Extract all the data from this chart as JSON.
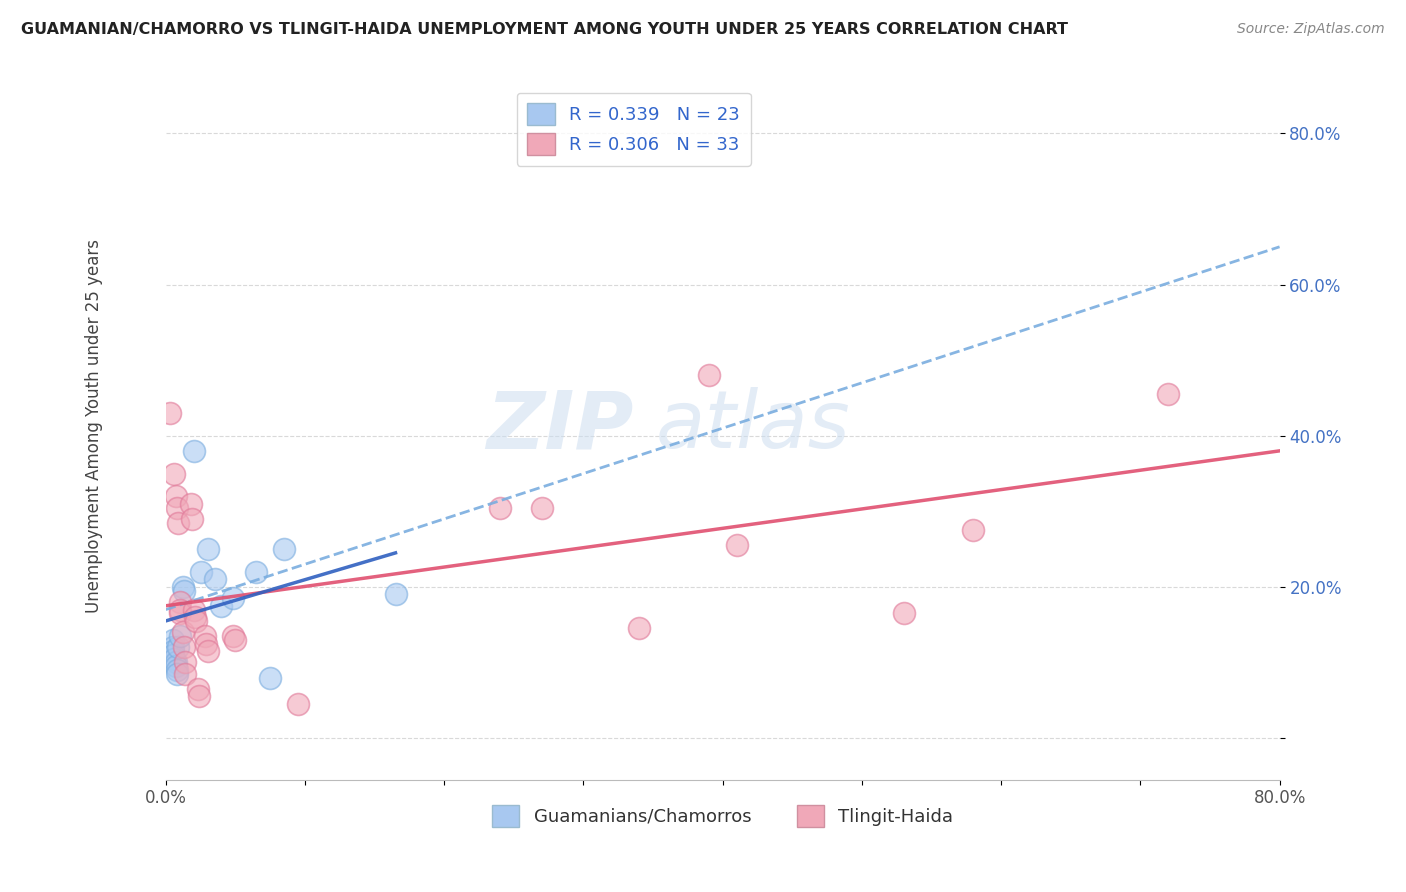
{
  "title": "GUAMANIAN/CHAMORRO VS TLINGIT-HAIDA UNEMPLOYMENT AMONG YOUTH UNDER 25 YEARS CORRELATION CHART",
  "source": "Source: ZipAtlas.com",
  "ylabel": "Unemployment Among Youth under 25 years",
  "blue_color": "#a8c8f0",
  "pink_color": "#f0a8b8",
  "blue_scatter": [
    [
      0.005,
      0.13
    ],
    [
      0.005,
      0.12
    ],
    [
      0.005,
      0.115
    ],
    [
      0.005,
      0.11
    ],
    [
      0.006,
      0.105
    ],
    [
      0.007,
      0.1
    ],
    [
      0.007,
      0.095
    ],
    [
      0.008,
      0.09
    ],
    [
      0.008,
      0.085
    ],
    [
      0.009,
      0.12
    ],
    [
      0.01,
      0.135
    ],
    [
      0.012,
      0.2
    ],
    [
      0.013,
      0.195
    ],
    [
      0.02,
      0.38
    ],
    [
      0.025,
      0.22
    ],
    [
      0.03,
      0.25
    ],
    [
      0.035,
      0.21
    ],
    [
      0.04,
      0.175
    ],
    [
      0.048,
      0.185
    ],
    [
      0.065,
      0.22
    ],
    [
      0.075,
      0.08
    ],
    [
      0.085,
      0.25
    ],
    [
      0.165,
      0.19
    ]
  ],
  "pink_scatter": [
    [
      0.003,
      0.43
    ],
    [
      0.006,
      0.35
    ],
    [
      0.007,
      0.32
    ],
    [
      0.008,
      0.305
    ],
    [
      0.009,
      0.285
    ],
    [
      0.01,
      0.18
    ],
    [
      0.01,
      0.17
    ],
    [
      0.01,
      0.165
    ],
    [
      0.012,
      0.14
    ],
    [
      0.013,
      0.12
    ],
    [
      0.014,
      0.1
    ],
    [
      0.014,
      0.085
    ],
    [
      0.018,
      0.31
    ],
    [
      0.019,
      0.29
    ],
    [
      0.02,
      0.17
    ],
    [
      0.021,
      0.16
    ],
    [
      0.022,
      0.155
    ],
    [
      0.023,
      0.065
    ],
    [
      0.024,
      0.055
    ],
    [
      0.028,
      0.135
    ],
    [
      0.029,
      0.125
    ],
    [
      0.03,
      0.115
    ],
    [
      0.048,
      0.135
    ],
    [
      0.05,
      0.13
    ],
    [
      0.095,
      0.045
    ],
    [
      0.24,
      0.305
    ],
    [
      0.27,
      0.305
    ],
    [
      0.34,
      0.145
    ],
    [
      0.39,
      0.48
    ],
    [
      0.41,
      0.255
    ],
    [
      0.53,
      0.165
    ],
    [
      0.58,
      0.275
    ],
    [
      0.72,
      0.455
    ]
  ],
  "blue_line": {
    "x0": 0.0,
    "x1": 0.8,
    "y0": 0.17,
    "y1": 0.65
  },
  "blue_solid_line": {
    "x0": 0.0,
    "x1": 0.165,
    "y0": 0.155,
    "y1": 0.245
  },
  "pink_line": {
    "x0": 0.0,
    "x1": 0.8,
    "y0": 0.175,
    "y1": 0.38
  },
  "xlim": [
    0.0,
    0.8
  ],
  "ylim": [
    -0.055,
    0.88
  ],
  "y_ticks": [
    0.0,
    0.2,
    0.4,
    0.6,
    0.8
  ],
  "y_tick_labels": [
    "",
    "20.0%",
    "40.0%",
    "60.0%",
    "80.0%"
  ],
  "x_ticks": [
    0.0,
    0.1,
    0.2,
    0.3,
    0.4,
    0.5,
    0.6,
    0.7,
    0.8
  ],
  "x_tick_labels": [
    "0.0%",
    "",
    "",
    "",
    "",
    "",
    "",
    "",
    "80.0%"
  ],
  "background_color": "#ffffff",
  "grid_color": "#d0d0d0"
}
